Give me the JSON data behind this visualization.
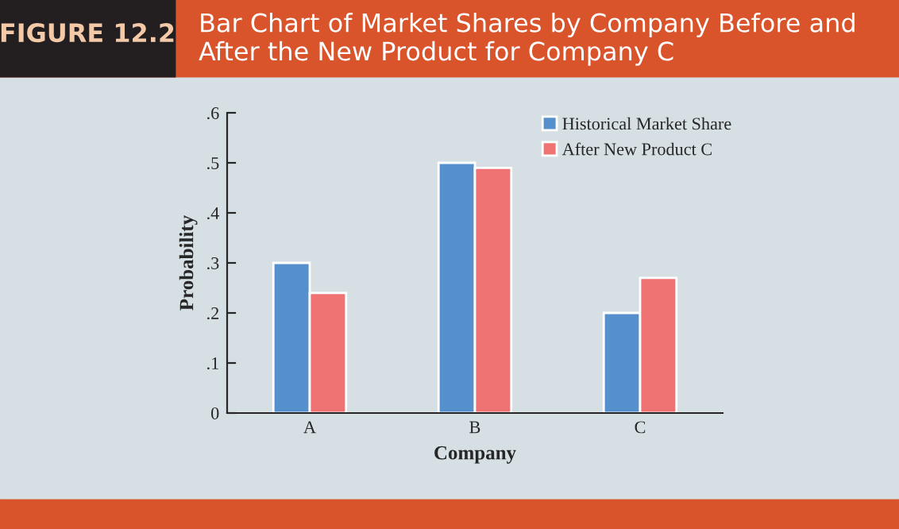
{
  "chart_data": {
    "type": "bar",
    "title": "Bar Chart of Market Shares by Company Before and After the New Product for Company C",
    "annotations": [
      "FIGURE 12.2"
    ],
    "xlabel": "Company",
    "ylabel": "Probability",
    "categories": [
      "A",
      "B",
      "C"
    ],
    "series": [
      {
        "name": "Historical Market Share",
        "color": "#5590cc",
        "values": [
          0.3,
          0.5,
          0.2
        ]
      },
      {
        "name": "After New Product C",
        "color": "#f07374",
        "values": [
          0.24,
          0.49,
          0.27
        ]
      }
    ],
    "ylim": [
      0,
      0.6
    ],
    "yticks": [
      0,
      {
        "value": 0.1,
        "label": ".1"
      },
      {
        "value": 0.2,
        "label": ".2"
      },
      {
        "value": 0.3,
        "label": ".3"
      },
      {
        "value": 0.4,
        "label": ".4"
      },
      {
        "value": 0.5,
        "label": ".5"
      },
      {
        "value": 0.6,
        "label": ".6"
      }
    ],
    "grid": false,
    "legend": "top right"
  }
}
